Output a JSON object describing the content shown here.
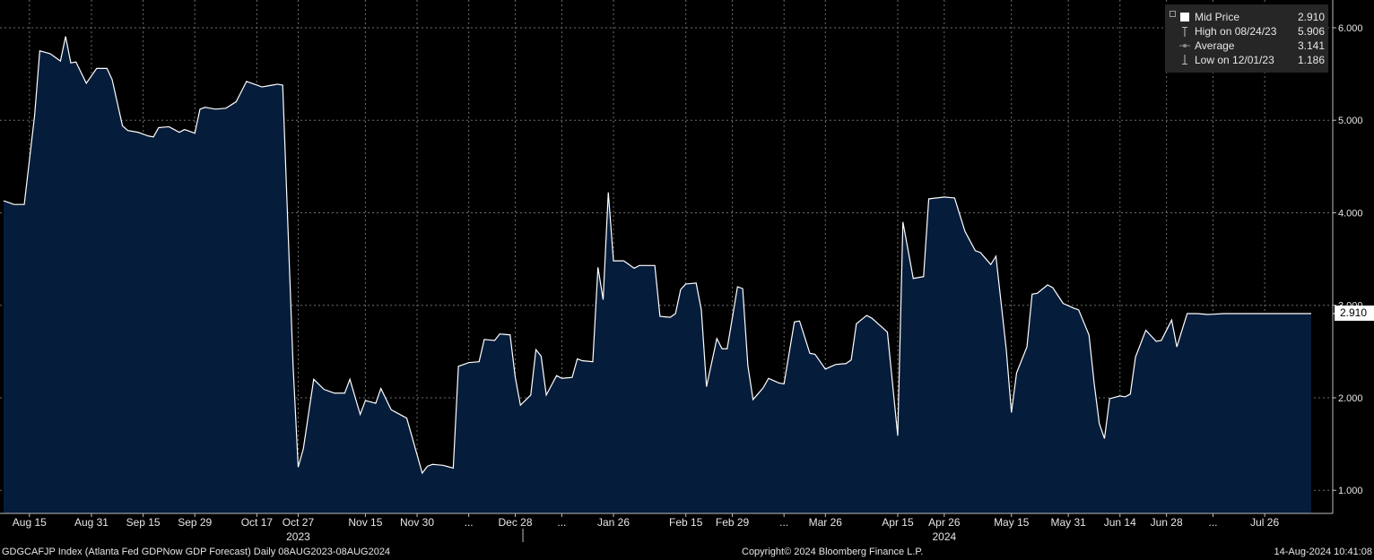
{
  "chart_data": {
    "type": "area",
    "dates": [
      "2023-08-08",
      "2023-08-09",
      "2023-08-10",
      "2023-08-11",
      "2023-08-14",
      "2023-08-15",
      "2023-08-16",
      "2023-08-17",
      "2023-08-18",
      "2023-08-21",
      "2023-08-22",
      "2023-08-23",
      "2023-08-24",
      "2023-08-25",
      "2023-08-28",
      "2023-08-29",
      "2023-08-30",
      "2023-08-31",
      "2023-09-01",
      "2023-09-05",
      "2023-09-06",
      "2023-09-07",
      "2023-09-08",
      "2023-09-11",
      "2023-09-12",
      "2023-09-13",
      "2023-09-14",
      "2023-09-15",
      "2023-09-18",
      "2023-09-19",
      "2023-09-20",
      "2023-09-21",
      "2023-09-22",
      "2023-09-25",
      "2023-09-26",
      "2023-09-27",
      "2023-09-28",
      "2023-09-29",
      "2023-10-02",
      "2023-10-03",
      "2023-10-04",
      "2023-10-05",
      "2023-10-06",
      "2023-10-09",
      "2023-10-10",
      "2023-10-11",
      "2023-10-12",
      "2023-10-13",
      "2023-10-16",
      "2023-10-17",
      "2023-10-18",
      "2023-10-19",
      "2023-10-20",
      "2023-10-23",
      "2023-10-24",
      "2023-10-25",
      "2023-10-26",
      "2023-10-27",
      "2023-10-30",
      "2023-10-31",
      "2023-11-01",
      "2023-11-02",
      "2023-11-03",
      "2023-11-06",
      "2023-11-07",
      "2023-11-08",
      "2023-11-09",
      "2023-11-10",
      "2023-11-13",
      "2023-11-14",
      "2023-11-15",
      "2023-11-16",
      "2023-11-17",
      "2023-11-20",
      "2023-11-21",
      "2023-11-22",
      "2023-11-24",
      "2023-11-27",
      "2023-11-28",
      "2023-11-29",
      "2023-11-30",
      "2023-12-01",
      "2023-12-04",
      "2023-12-05",
      "2023-12-06",
      "2023-12-07",
      "2023-12-08",
      "2023-12-11",
      "2023-12-12",
      "2023-12-13",
      "2023-12-14",
      "2023-12-15",
      "2023-12-18",
      "2023-12-19",
      "2023-12-20",
      "2023-12-21",
      "2023-12-22",
      "2023-12-26",
      "2023-12-27",
      "2023-12-28",
      "2023-12-29",
      "2024-01-02",
      "2024-01-03",
      "2024-01-04",
      "2024-01-05",
      "2024-01-08",
      "2024-01-09",
      "2024-01-10",
      "2024-01-11",
      "2024-01-12",
      "2024-01-16",
      "2024-01-17",
      "2024-01-18",
      "2024-01-19",
      "2024-01-22",
      "2024-01-23",
      "2024-01-24",
      "2024-01-25",
      "2024-01-26",
      "2024-01-29",
      "2024-01-30",
      "2024-01-31",
      "2024-02-01",
      "2024-02-02",
      "2024-02-05",
      "2024-02-06",
      "2024-02-07",
      "2024-02-08",
      "2024-02-09",
      "2024-02-12",
      "2024-02-13",
      "2024-02-14",
      "2024-02-15",
      "2024-02-16",
      "2024-02-20",
      "2024-02-21",
      "2024-02-22",
      "2024-02-23",
      "2024-02-26",
      "2024-02-27",
      "2024-02-28",
      "2024-02-29",
      "2024-03-01",
      "2024-03-04",
      "2024-03-05",
      "2024-03-06",
      "2024-03-07",
      "2024-03-08",
      "2024-03-11",
      "2024-03-12",
      "2024-03-13",
      "2024-03-14",
      "2024-03-15",
      "2024-03-18",
      "2024-03-19",
      "2024-03-20",
      "2024-03-21",
      "2024-03-22",
      "2024-03-25",
      "2024-03-26",
      "2024-03-27",
      "2024-03-28",
      "2024-03-29",
      "2024-04-01",
      "2024-04-02",
      "2024-04-03",
      "2024-04-04",
      "2024-04-05",
      "2024-04-08",
      "2024-04-09",
      "2024-04-10",
      "2024-04-11",
      "2024-04-12",
      "2024-04-15",
      "2024-04-16",
      "2024-04-17",
      "2024-04-18",
      "2024-04-19",
      "2024-04-22",
      "2024-04-23",
      "2024-04-24",
      "2024-04-25",
      "2024-04-26",
      "2024-04-29",
      "2024-04-30",
      "2024-05-01",
      "2024-05-02",
      "2024-05-03",
      "2024-05-06",
      "2024-05-07",
      "2024-05-08",
      "2024-05-09",
      "2024-05-10",
      "2024-05-13",
      "2024-05-14",
      "2024-05-15",
      "2024-05-16",
      "2024-05-17",
      "2024-05-20",
      "2024-05-21",
      "2024-05-22",
      "2024-05-23",
      "2024-05-24",
      "2024-05-28",
      "2024-05-29",
      "2024-05-30",
      "2024-05-31",
      "2024-06-03",
      "2024-06-04",
      "2024-06-05",
      "2024-06-06",
      "2024-06-07",
      "2024-06-10",
      "2024-06-11",
      "2024-06-12",
      "2024-06-13",
      "2024-06-14",
      "2024-06-17",
      "2024-06-18",
      "2024-06-20",
      "2024-06-21",
      "2024-06-24",
      "2024-06-25",
      "2024-06-26",
      "2024-06-27",
      "2024-06-28",
      "2024-07-01",
      "2024-07-02",
      "2024-07-03",
      "2024-07-05",
      "2024-07-08",
      "2024-07-09",
      "2024-07-10",
      "2024-07-11",
      "2024-07-12",
      "2024-07-15",
      "2024-07-16",
      "2024-07-17",
      "2024-07-18",
      "2024-07-19",
      "2024-07-22",
      "2024-07-23",
      "2024-07-24",
      "2024-07-25",
      "2024-07-26",
      "2024-07-29",
      "2024-07-30",
      "2024-07-31",
      "2024-08-01",
      "2024-08-02",
      "2024-08-05",
      "2024-08-06",
      "2024-08-07",
      "2024-08-08"
    ],
    "anchors": [
      {
        "date": "2023-08-08",
        "value": 4.13
      },
      {
        "date": "2023-08-10",
        "value": 4.09
      },
      {
        "date": "2023-08-14",
        "value": 4.09
      },
      {
        "date": "2023-08-16",
        "value": 5.05
      },
      {
        "date": "2023-08-17",
        "value": 5.75
      },
      {
        "date": "2023-08-21",
        "value": 5.72
      },
      {
        "date": "2023-08-23",
        "value": 5.64
      },
      {
        "date": "2023-08-24",
        "value": 5.906
      },
      {
        "date": "2023-08-25",
        "value": 5.62
      },
      {
        "date": "2023-08-28",
        "value": 5.63
      },
      {
        "date": "2023-08-30",
        "value": 5.4
      },
      {
        "date": "2023-09-01",
        "value": 5.56
      },
      {
        "date": "2023-09-06",
        "value": 5.56
      },
      {
        "date": "2023-09-07",
        "value": 5.44
      },
      {
        "date": "2023-09-11",
        "value": 4.94
      },
      {
        "date": "2023-09-12",
        "value": 4.89
      },
      {
        "date": "2023-09-14",
        "value": 4.87
      },
      {
        "date": "2023-09-18",
        "value": 4.83
      },
      {
        "date": "2023-09-19",
        "value": 4.82
      },
      {
        "date": "2023-09-20",
        "value": 4.92
      },
      {
        "date": "2023-09-22",
        "value": 4.93
      },
      {
        "date": "2023-09-26",
        "value": 4.87
      },
      {
        "date": "2023-09-27",
        "value": 4.9
      },
      {
        "date": "2023-09-29",
        "value": 4.86
      },
      {
        "date": "2023-10-02",
        "value": 5.12
      },
      {
        "date": "2023-10-03",
        "value": 5.14
      },
      {
        "date": "2023-10-05",
        "value": 5.12
      },
      {
        "date": "2023-10-09",
        "value": 5.13
      },
      {
        "date": "2023-10-11",
        "value": 5.2
      },
      {
        "date": "2023-10-13",
        "value": 5.42
      },
      {
        "date": "2023-10-16",
        "value": 5.4
      },
      {
        "date": "2023-10-18",
        "value": 5.36
      },
      {
        "date": "2023-10-23",
        "value": 5.39
      },
      {
        "date": "2023-10-24",
        "value": 5.38
      },
      {
        "date": "2023-10-26",
        "value": 2.36
      },
      {
        "date": "2023-10-27",
        "value": 1.25
      },
      {
        "date": "2023-10-30",
        "value": 1.45
      },
      {
        "date": "2023-11-01",
        "value": 2.2
      },
      {
        "date": "2023-11-03",
        "value": 2.09
      },
      {
        "date": "2023-11-07",
        "value": 2.05
      },
      {
        "date": "2023-11-09",
        "value": 2.05
      },
      {
        "date": "2023-11-10",
        "value": 2.2
      },
      {
        "date": "2023-11-14",
        "value": 1.82
      },
      {
        "date": "2023-11-15",
        "value": 1.97
      },
      {
        "date": "2023-11-17",
        "value": 1.94
      },
      {
        "date": "2023-11-20",
        "value": 2.1
      },
      {
        "date": "2023-11-22",
        "value": 1.87
      },
      {
        "date": "2023-11-28",
        "value": 1.78
      },
      {
        "date": "2023-12-01",
        "value": 1.186
      },
      {
        "date": "2023-12-04",
        "value": 1.26
      },
      {
        "date": "2023-12-05",
        "value": 1.28
      },
      {
        "date": "2023-12-07",
        "value": 1.27
      },
      {
        "date": "2023-12-11",
        "value": 1.24
      },
      {
        "date": "2023-12-12",
        "value": 2.34
      },
      {
        "date": "2023-12-14",
        "value": 2.38
      },
      {
        "date": "2023-12-18",
        "value": 2.39
      },
      {
        "date": "2023-12-19",
        "value": 2.63
      },
      {
        "date": "2023-12-21",
        "value": 2.62
      },
      {
        "date": "2023-12-22",
        "value": 2.69
      },
      {
        "date": "2023-12-27",
        "value": 2.68
      },
      {
        "date": "2023-12-28",
        "value": 2.22
      },
      {
        "date": "2023-12-29",
        "value": 1.92
      },
      {
        "date": "2024-01-03",
        "value": 2.03
      },
      {
        "date": "2024-01-04",
        "value": 2.52
      },
      {
        "date": "2024-01-05",
        "value": 2.45
      },
      {
        "date": "2024-01-08",
        "value": 2.03
      },
      {
        "date": "2024-01-10",
        "value": 2.24
      },
      {
        "date": "2024-01-11",
        "value": 2.21
      },
      {
        "date": "2024-01-16",
        "value": 2.22
      },
      {
        "date": "2024-01-17",
        "value": 2.42
      },
      {
        "date": "2024-01-18",
        "value": 2.4
      },
      {
        "date": "2024-01-22",
        "value": 2.39
      },
      {
        "date": "2024-01-23",
        "value": 3.41
      },
      {
        "date": "2024-01-24",
        "value": 3.06
      },
      {
        "date": "2024-01-25",
        "value": 4.22
      },
      {
        "date": "2024-01-26",
        "value": 3.48
      },
      {
        "date": "2024-01-30",
        "value": 3.48
      },
      {
        "date": "2024-02-01",
        "value": 3.4
      },
      {
        "date": "2024-02-02",
        "value": 3.43
      },
      {
        "date": "2024-02-07",
        "value": 3.43
      },
      {
        "date": "2024-02-08",
        "value": 2.88
      },
      {
        "date": "2024-02-12",
        "value": 2.87
      },
      {
        "date": "2024-02-13",
        "value": 2.91
      },
      {
        "date": "2024-02-14",
        "value": 3.17
      },
      {
        "date": "2024-02-15",
        "value": 3.23
      },
      {
        "date": "2024-02-20",
        "value": 3.24
      },
      {
        "date": "2024-02-21",
        "value": 2.95
      },
      {
        "date": "2024-02-22",
        "value": 2.12
      },
      {
        "date": "2024-02-26",
        "value": 2.64
      },
      {
        "date": "2024-02-27",
        "value": 2.53
      },
      {
        "date": "2024-02-28",
        "value": 2.53
      },
      {
        "date": "2024-03-01",
        "value": 3.2
      },
      {
        "date": "2024-03-04",
        "value": 3.18
      },
      {
        "date": "2024-03-05",
        "value": 2.35
      },
      {
        "date": "2024-03-06",
        "value": 1.98
      },
      {
        "date": "2024-03-08",
        "value": 2.11
      },
      {
        "date": "2024-03-11",
        "value": 2.21
      },
      {
        "date": "2024-03-13",
        "value": 2.16
      },
      {
        "date": "2024-03-14",
        "value": 2.15
      },
      {
        "date": "2024-03-18",
        "value": 2.82
      },
      {
        "date": "2024-03-19",
        "value": 2.83
      },
      {
        "date": "2024-03-21",
        "value": 2.48
      },
      {
        "date": "2024-03-22",
        "value": 2.47
      },
      {
        "date": "2024-03-26",
        "value": 2.31
      },
      {
        "date": "2024-03-28",
        "value": 2.36
      },
      {
        "date": "2024-04-01",
        "value": 2.37
      },
      {
        "date": "2024-04-02",
        "value": 2.41
      },
      {
        "date": "2024-04-03",
        "value": 2.8
      },
      {
        "date": "2024-04-05",
        "value": 2.89
      },
      {
        "date": "2024-04-08",
        "value": 2.86
      },
      {
        "date": "2024-04-10",
        "value": 2.76
      },
      {
        "date": "2024-04-11",
        "value": 2.71
      },
      {
        "date": "2024-04-15",
        "value": 1.59
      },
      {
        "date": "2024-04-16",
        "value": 3.9
      },
      {
        "date": "2024-04-18",
        "value": 3.29
      },
      {
        "date": "2024-04-22",
        "value": 3.31
      },
      {
        "date": "2024-04-23",
        "value": 4.15
      },
      {
        "date": "2024-04-26",
        "value": 4.17
      },
      {
        "date": "2024-04-30",
        "value": 4.16
      },
      {
        "date": "2024-05-02",
        "value": 3.8
      },
      {
        "date": "2024-05-06",
        "value": 3.59
      },
      {
        "date": "2024-05-07",
        "value": 3.57
      },
      {
        "date": "2024-05-09",
        "value": 3.44
      },
      {
        "date": "2024-05-10",
        "value": 3.53
      },
      {
        "date": "2024-05-14",
        "value": 2.52
      },
      {
        "date": "2024-05-15",
        "value": 1.84
      },
      {
        "date": "2024-05-16",
        "value": 2.27
      },
      {
        "date": "2024-05-20",
        "value": 2.55
      },
      {
        "date": "2024-05-21",
        "value": 3.12
      },
      {
        "date": "2024-05-22",
        "value": 3.13
      },
      {
        "date": "2024-05-24",
        "value": 3.22
      },
      {
        "date": "2024-05-28",
        "value": 3.19
      },
      {
        "date": "2024-05-30",
        "value": 3.02
      },
      {
        "date": "2024-06-03",
        "value": 2.97
      },
      {
        "date": "2024-06-04",
        "value": 2.95
      },
      {
        "date": "2024-06-06",
        "value": 2.68
      },
      {
        "date": "2024-06-07",
        "value": 2.16
      },
      {
        "date": "2024-06-10",
        "value": 1.72
      },
      {
        "date": "2024-06-11",
        "value": 1.56
      },
      {
        "date": "2024-06-12",
        "value": 1.99
      },
      {
        "date": "2024-06-14",
        "value": 2.02
      },
      {
        "date": "2024-06-17",
        "value": 2.01
      },
      {
        "date": "2024-06-18",
        "value": 2.04
      },
      {
        "date": "2024-06-20",
        "value": 2.44
      },
      {
        "date": "2024-06-24",
        "value": 2.73
      },
      {
        "date": "2024-06-26",
        "value": 2.61
      },
      {
        "date": "2024-06-27",
        "value": 2.62
      },
      {
        "date": "2024-07-01",
        "value": 2.84
      },
      {
        "date": "2024-07-02",
        "value": 2.55
      },
      {
        "date": "2024-07-05",
        "value": 2.91
      },
      {
        "date": "2024-07-09",
        "value": 2.91
      },
      {
        "date": "2024-07-11",
        "value": 2.9
      },
      {
        "date": "2024-07-16",
        "value": 2.91
      },
      {
        "date": "2024-08-08",
        "value": 2.91
      }
    ],
    "ylim": [
      0.75,
      6.3
    ],
    "y_ticks": [
      "1.000",
      "2.000",
      "3.000",
      "4.000",
      "5.000",
      "6.000"
    ],
    "y_tick_values": [
      1,
      2,
      3,
      4,
      5,
      6
    ],
    "x_ticks": [
      {
        "label": "Aug 15",
        "date": "2023-08-15"
      },
      {
        "label": "Aug 31",
        "date": "2023-08-31"
      },
      {
        "label": "Sep 15",
        "date": "2023-09-15"
      },
      {
        "label": "Sep 29",
        "date": "2023-09-29"
      },
      {
        "label": "Oct 17",
        "date": "2023-10-17"
      },
      {
        "label": "Oct 27",
        "date": "2023-10-27"
      },
      {
        "label": "Nov 15",
        "date": "2023-11-15"
      },
      {
        "label": "Nov 30",
        "date": "2023-11-30"
      },
      {
        "label": "...",
        "date": "2023-12-14"
      },
      {
        "label": "Dec 28",
        "date": "2023-12-28"
      },
      {
        "label": "...",
        "date": "2024-01-11"
      },
      {
        "label": "Jan 26",
        "date": "2024-01-26"
      },
      {
        "label": "Feb 15",
        "date": "2024-02-15"
      },
      {
        "label": "Feb 29",
        "date": "2024-02-29"
      },
      {
        "label": "...",
        "date": "2024-03-14"
      },
      {
        "label": "Mar 26",
        "date": "2024-03-26"
      },
      {
        "label": "Apr 15",
        "date": "2024-04-15"
      },
      {
        "label": "Apr 26",
        "date": "2024-04-26"
      },
      {
        "label": "May 15",
        "date": "2024-05-15"
      },
      {
        "label": "May 31",
        "date": "2024-05-31"
      },
      {
        "label": "Jun 14",
        "date": "2024-06-14"
      },
      {
        "label": "Jun 28",
        "date": "2024-06-28"
      },
      {
        "label": "...",
        "date": "2024-07-12"
      },
      {
        "label": "Jul 26",
        "date": "2024-07-26"
      }
    ],
    "year_labels": [
      {
        "label": "2023",
        "date": "2023-10-27"
      },
      {
        "label": "2024",
        "date": "2024-04-26"
      }
    ],
    "year_divider_date": "2024-01-02",
    "grid": true,
    "colors": {
      "area": "#061c3b",
      "line": "#ffffff",
      "grid": "#6e6e6e",
      "background": "#000000",
      "axis": "#bdbdbd"
    },
    "last_value_tag": "2.910",
    "last_value": 2.91
  },
  "legend": {
    "placement": "top-right",
    "rows": [
      {
        "icon": "filled-square-icon",
        "label": "Mid Price",
        "value": "2.910"
      },
      {
        "icon": "high-marker-icon",
        "label": "High on 08/24/23",
        "value": "5.906"
      },
      {
        "icon": "average-marker-icon",
        "label": "Average",
        "value": "3.141"
      },
      {
        "icon": "low-marker-icon",
        "label": "Low on 12/01/23",
        "value": "1.186"
      }
    ]
  },
  "footer": {
    "left": "GDGCAFJP Index (Atlanta Fed GDPNow GDP Forecast)  Daily 08AUG2023-08AUG2024",
    "center": "Copyright© 2024 Bloomberg Finance L.P.",
    "right": "14-Aug-2024 10:41:08"
  }
}
